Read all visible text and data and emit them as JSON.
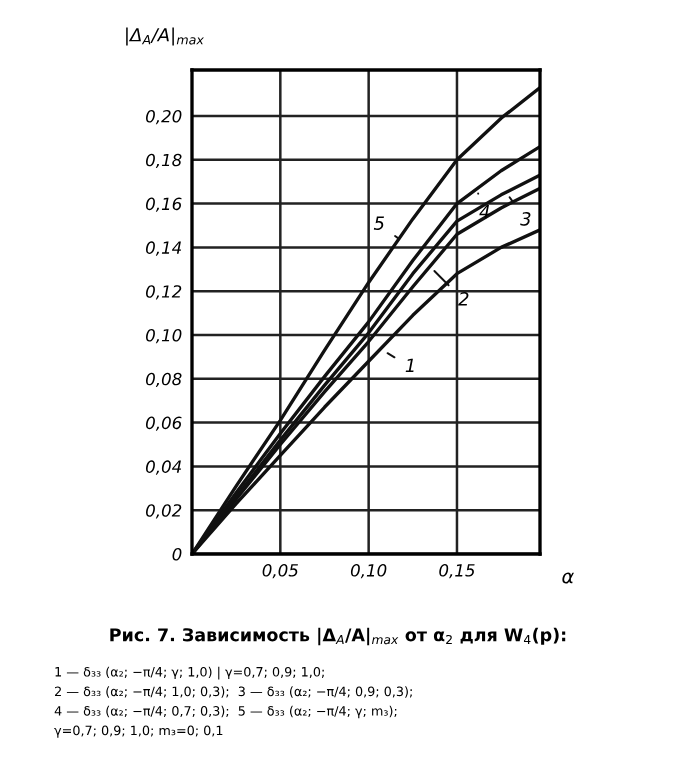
{
  "chart_data": {
    "type": "line",
    "ylabel": "|Δ$_{A}$/A|$_{max}$",
    "xlabel": "α",
    "x": [
      0,
      0.025,
      0.05,
      0.075,
      0.1,
      0.125,
      0.15,
      0.175,
      0.197
    ],
    "series": [
      {
        "color": "#111111",
        "values": [
          0,
          0.023,
          0.045,
          0.067,
          0.088,
          0.109,
          0.128,
          0.14,
          0.148
        ]
      },
      {
        "color": "#111111",
        "values": [
          0,
          0.025,
          0.05,
          0.074,
          0.097,
          0.122,
          0.146,
          0.158,
          0.167
        ]
      },
      {
        "color": "#111111",
        "values": [
          0,
          0.026,
          0.052,
          0.077,
          0.101,
          0.128,
          0.152,
          0.164,
          0.173
        ]
      },
      {
        "color": "#111111",
        "values": [
          0,
          0.028,
          0.055,
          0.081,
          0.106,
          0.134,
          0.16,
          0.175,
          0.186
        ]
      },
      {
        "color": "#111111",
        "values": [
          0,
          0.031,
          0.061,
          0.093,
          0.124,
          0.153,
          0.18,
          0.199,
          0.213
        ]
      }
    ],
    "xlim": [
      0,
      0.197
    ],
    "ylim": [
      0,
      0.221
    ],
    "xticks": [
      {
        "value": 0.05,
        "label": "0,05"
      },
      {
        "value": 0.1,
        "label": "0,10"
      },
      {
        "value": 0.15,
        "label": "0,15"
      }
    ],
    "yticks": [
      {
        "value": 0,
        "label": "0"
      },
      {
        "value": 0.02,
        "label": "0,02"
      },
      {
        "value": 0.04,
        "label": "0,04"
      },
      {
        "value": 0.06,
        "label": "0,06"
      },
      {
        "value": 0.08,
        "label": "0,08"
      },
      {
        "value": 0.1,
        "label": "0,10"
      },
      {
        "value": 0.12,
        "label": "0,12"
      },
      {
        "value": 0.14,
        "label": "0,14"
      },
      {
        "value": 0.16,
        "label": "0,16"
      },
      {
        "value": 0.18,
        "label": "0,18"
      },
      {
        "value": 0.2,
        "label": "0,20"
      }
    ],
    "grid": true,
    "legend": false,
    "marker": "none",
    "line_style": "solid",
    "annotations": [
      {
        "text": "1",
        "x": 0.108,
        "y": 0.093
      },
      {
        "text": "2",
        "x": 0.135,
        "y": 0.131
      },
      {
        "text": "3",
        "x": 0.178,
        "y": 0.165
      },
      {
        "text": "4",
        "x": 0.161,
        "y": 0.167
      },
      {
        "text": "5",
        "x": 0.117,
        "y": 0.144
      },
      "Рис. 7. Зависимость |Δ$_{A}$/A|$_{max}$ от α$_{2}$ для W$_{4}$(p):",
      "1 — δ₃₃ (α₂; −π/4; γ; 1,0) | γ=0,7; 0,9; 1,0;",
      "2 — δ₃₃ (α₂; −π/4; 1,0; 0,3);  3 — δ₃₃ (α₂; −π/4; 0,9; 0,3);",
      "4 — δ₃₃ (α₂; −π/4; 0,7; 0,3);  5 — δ₃₃ (α₂; −π/4; γ; m₃);",
      "γ=0,7; 0,9; 1,0; m₃=0; 0,1"
    ]
  }
}
